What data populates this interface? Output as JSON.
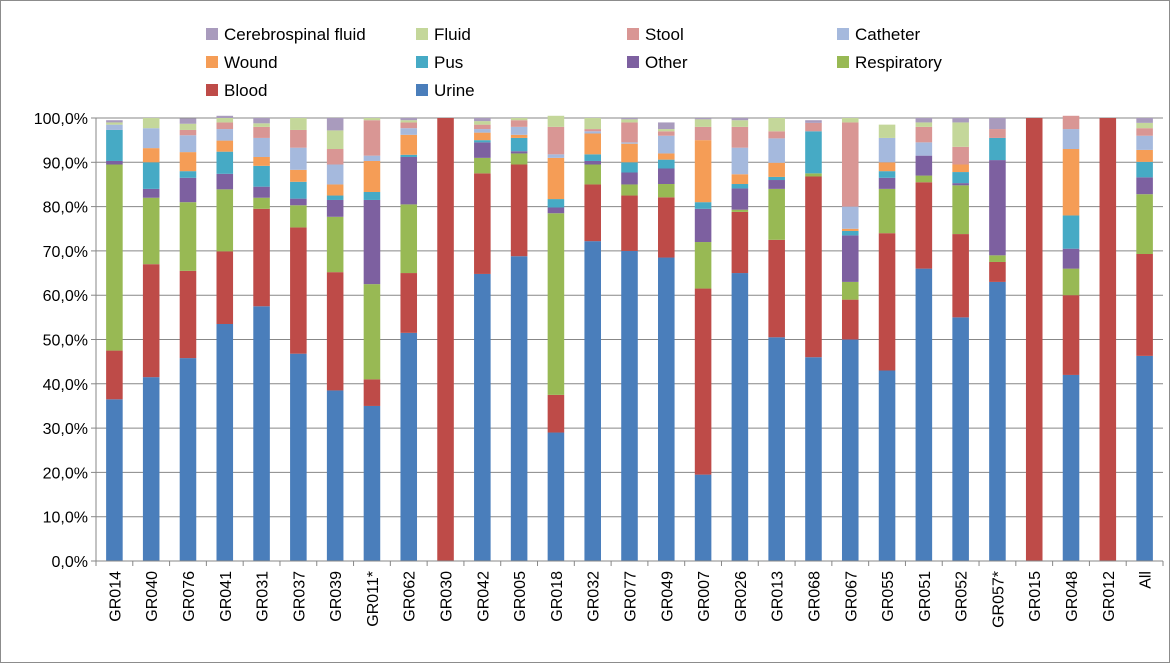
{
  "chart_data": {
    "type": "bar",
    "stacked": true,
    "percent": true,
    "categories": [
      "GR014",
      "GR040",
      "GR076",
      "GR041",
      "GR031",
      "GR037",
      "GR039",
      "GR011*",
      "GR062",
      "GR030",
      "GR042",
      "GR005",
      "GR018",
      "GR032",
      "GR077",
      "GR049",
      "GR007",
      "GR026",
      "GR013",
      "GR068",
      "GR067",
      "GR055",
      "GR051",
      "GR052",
      "GR057*",
      "GR015",
      "GR048",
      "GR012",
      "All"
    ],
    "ylim": [
      0,
      100
    ],
    "yticks": [
      "0,0%",
      "10,0%",
      "20,0%",
      "30,0%",
      "40,0%",
      "50,0%",
      "60,0%",
      "70,0%",
      "80,0%",
      "90,0%",
      "100,0%"
    ],
    "grid": true,
    "legend_position": "top",
    "series": [
      {
        "name": "Urine",
        "color": "#4a7ebb",
        "values": [
          36.5,
          41.5,
          45.8,
          53.5,
          57.5,
          46.8,
          38.5,
          35.0,
          51.5,
          0,
          64.8,
          68.8,
          29.0,
          72.2,
          70.0,
          68.5,
          19.5,
          65.0,
          50.5,
          46.0,
          50.0,
          43.0,
          66.0,
          55.0,
          63.0,
          0,
          42.0,
          0,
          46.3
        ]
      },
      {
        "name": "Blood",
        "color": "#be4b48",
        "values": [
          11.0,
          25.5,
          19.7,
          16.4,
          22.0,
          28.5,
          26.7,
          6.0,
          13.5,
          100,
          22.7,
          20.7,
          8.5,
          12.8,
          12.5,
          13.6,
          42.0,
          13.8,
          22.0,
          40.8,
          9.0,
          31.0,
          19.5,
          18.8,
          4.5,
          100,
          18.0,
          100,
          23.0
        ]
      },
      {
        "name": "Respiratory",
        "color": "#98b954",
        "values": [
          42.0,
          15.0,
          15.5,
          14.0,
          2.5,
          5.0,
          12.5,
          21.5,
          15.5,
          0,
          3.5,
          2.5,
          41.0,
          4.5,
          2.5,
          3.0,
          10.5,
          0.5,
          11.5,
          0.7,
          4.0,
          10.0,
          1.5,
          11.0,
          1.5,
          0,
          6.0,
          0,
          13.5
        ]
      },
      {
        "name": "Other",
        "color": "#7d60a0",
        "values": [
          0.8,
          2.0,
          5.5,
          3.5,
          2.5,
          1.5,
          3.8,
          19.0,
          10.7,
          0,
          3.5,
          0.5,
          1.3,
          0.8,
          2.7,
          3.5,
          7.5,
          4.8,
          2.0,
          0,
          10.5,
          2.5,
          4.5,
          0.5,
          21.5,
          0,
          4.5,
          0,
          3.8
        ]
      },
      {
        "name": "Pus",
        "color": "#46aac5",
        "values": [
          7.0,
          6.0,
          1.5,
          5.0,
          4.7,
          3.8,
          1.0,
          1.8,
          0.5,
          0,
          0.5,
          3.0,
          1.9,
          1.5,
          2.3,
          2.0,
          1.5,
          1.0,
          0.7,
          9.5,
          1.0,
          1.5,
          0,
          2.5,
          5.0,
          0,
          7.5,
          0,
          3.5
        ]
      },
      {
        "name": "Wound",
        "color": "#f59d56",
        "values": [
          0,
          3.2,
          4.3,
          2.5,
          2.0,
          2.7,
          2.5,
          7.0,
          4.5,
          0,
          1.7,
          0.7,
          9.3,
          4.7,
          4.2,
          1.4,
          14.0,
          2.2,
          3.2,
          0,
          0.5,
          2.0,
          0,
          1.7,
          0,
          0,
          15.0,
          0,
          2.7
        ]
      },
      {
        "name": "Catheter",
        "color": "#a5b9dd",
        "values": [
          1.2,
          4.5,
          3.8,
          2.6,
          4.3,
          5.0,
          4.5,
          1.2,
          1.5,
          0,
          0.8,
          1.8,
          0.8,
          0.5,
          0.3,
          4.0,
          0,
          6.0,
          5.5,
          0,
          5.0,
          5.5,
          3.0,
          0,
          0,
          0,
          4.5,
          0,
          3.2
        ]
      },
      {
        "name": "Stool",
        "color": "#d99694",
        "values": [
          0,
          0,
          1.2,
          1.5,
          2.5,
          4.0,
          3.5,
          8.0,
          1.3,
          0,
          1.0,
          1.5,
          6.2,
          0.5,
          4.5,
          1.0,
          3.0,
          4.7,
          1.6,
          1.9,
          19.0,
          0,
          3.5,
          4.0,
          2.0,
          0,
          3.0,
          0,
          1.7
        ]
      },
      {
        "name": "Fluid",
        "color": "#c4d79a",
        "values": [
          0.5,
          2.3,
          1.4,
          1.0,
          0.8,
          2.7,
          4.2,
          0.5,
          0.5,
          0,
          0.8,
          0.5,
          2.5,
          2.5,
          0.7,
          0.5,
          1.7,
          1.5,
          3.0,
          0,
          1.0,
          3.0,
          1.0,
          5.5,
          0,
          0,
          0,
          0,
          1.2
        ]
      },
      {
        "name": "Cerebrospinal fluid",
        "color": "#a99bbd",
        "values": [
          0.5,
          0,
          1.2,
          0.5,
          1.2,
          0,
          2.8,
          0,
          0.5,
          0,
          0.7,
          0,
          0,
          0,
          0.3,
          1.5,
          0.3,
          0.5,
          0,
          0.6,
          0,
          0,
          1.0,
          1.0,
          2.5,
          0,
          0,
          0,
          1.1
        ]
      }
    ],
    "legend_order": [
      "Cerebrospinal fluid",
      "Fluid",
      "Stool",
      "Catheter",
      "Wound",
      "Pus",
      "Other",
      "Respiratory",
      "Blood",
      "Urine"
    ]
  }
}
